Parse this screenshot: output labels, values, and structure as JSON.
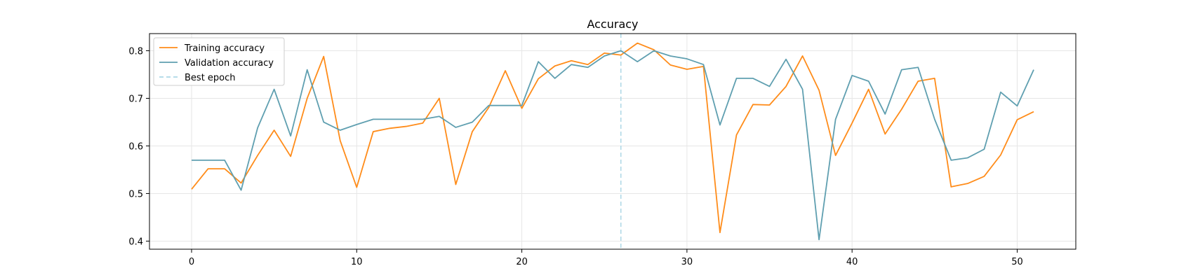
{
  "chart_data": {
    "type": "line",
    "title": "Accuracy",
    "xlabel": "",
    "ylabel": "",
    "xlim": [
      -2.55,
      53.55
    ],
    "ylim": [
      0.383,
      0.836
    ],
    "x_ticks": [
      0,
      10,
      20,
      30,
      40,
      50
    ],
    "y_ticks": [
      0.4,
      0.5,
      0.6,
      0.7,
      0.8
    ],
    "x_tick_labels": [
      "0",
      "10",
      "20",
      "30",
      "40",
      "50"
    ],
    "y_tick_labels": [
      "0.4",
      "0.5",
      "0.6",
      "0.7",
      "0.8"
    ],
    "grid": true,
    "legend_position": "top-left",
    "best_epoch": 26,
    "series": [
      {
        "name": "Training accuracy",
        "color": "#ff8c1a",
        "x": [
          0,
          1,
          2,
          3,
          4,
          5,
          6,
          7,
          8,
          9,
          10,
          11,
          12,
          13,
          14,
          15,
          16,
          17,
          18,
          19,
          20,
          21,
          22,
          23,
          24,
          25,
          26,
          27,
          28,
          29,
          30,
          31,
          32,
          33,
          34,
          35,
          36,
          37,
          38,
          39,
          40,
          41,
          42,
          43,
          44,
          45,
          46,
          47,
          48,
          49,
          50,
          51
        ],
        "values": [
          0.509,
          0.552,
          0.552,
          0.522,
          0.58,
          0.633,
          0.578,
          0.7,
          0.788,
          0.611,
          0.513,
          0.63,
          0.637,
          0.641,
          0.648,
          0.7,
          0.519,
          0.63,
          0.681,
          0.758,
          0.679,
          0.741,
          0.768,
          0.779,
          0.771,
          0.795,
          0.791,
          0.816,
          0.802,
          0.77,
          0.761,
          0.767,
          0.418,
          0.623,
          0.687,
          0.686,
          0.725,
          0.789,
          0.717,
          0.58,
          0.648,
          0.719,
          0.625,
          0.677,
          0.736,
          0.742,
          0.514,
          0.521,
          0.536,
          0.581,
          0.655,
          0.672
        ]
      },
      {
        "name": "Validation accuracy",
        "color": "#5f9fb0",
        "x": [
          0,
          1,
          2,
          3,
          4,
          5,
          6,
          7,
          8,
          9,
          10,
          11,
          12,
          13,
          14,
          15,
          16,
          17,
          18,
          19,
          20,
          21,
          22,
          23,
          24,
          25,
          26,
          27,
          28,
          29,
          30,
          31,
          32,
          33,
          34,
          35,
          36,
          37,
          38,
          39,
          40,
          41,
          42,
          43,
          44,
          45,
          46,
          47,
          48,
          49,
          50,
          51
        ],
        "values": [
          0.57,
          0.57,
          0.57,
          0.507,
          0.638,
          0.719,
          0.621,
          0.76,
          0.65,
          0.633,
          0.645,
          0.656,
          0.656,
          0.656,
          0.656,
          0.662,
          0.639,
          0.65,
          0.685,
          0.685,
          0.685,
          0.777,
          0.742,
          0.771,
          0.765,
          0.789,
          0.8,
          0.777,
          0.8,
          0.789,
          0.783,
          0.771,
          0.644,
          0.742,
          0.742,
          0.725,
          0.782,
          0.719,
          0.403,
          0.656,
          0.748,
          0.736,
          0.667,
          0.76,
          0.765,
          0.656,
          0.57,
          0.575,
          0.593,
          0.713,
          0.684,
          0.76
        ]
      }
    ],
    "best_epoch_line": {
      "name": "Best epoch",
      "color": "#add8e6"
    }
  }
}
